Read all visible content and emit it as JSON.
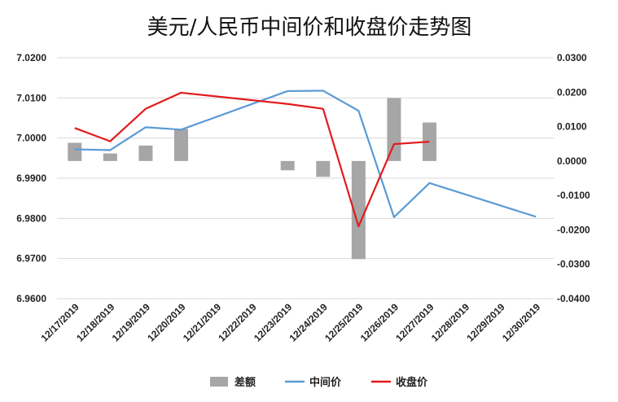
{
  "chart_data": {
    "type": "bar",
    "title": "美元/人民币中间价和收盘价走势图",
    "categories": [
      "12/17/2019",
      "12/18/2019",
      "12/19/2019",
      "12/20/2019",
      "12/21/2019",
      "12/22/2019",
      "12/23/2019",
      "12/24/2019",
      "12/25/2019",
      "12/26/2019",
      "12/27/2019",
      "12/28/2019",
      "12/29/2019",
      "12/30/2019"
    ],
    "left_axis": {
      "ylim": [
        6.96,
        7.02
      ],
      "ticks": [
        "6.9600",
        "6.9700",
        "6.9800",
        "6.9900",
        "7.0000",
        "7.0100",
        "7.0200"
      ],
      "tick_values": [
        6.96,
        6.97,
        6.98,
        6.99,
        7.0,
        7.01,
        7.02
      ]
    },
    "right_axis": {
      "ylim": [
        -0.04,
        0.03
      ],
      "ticks": [
        "-0.0400",
        "-0.0300",
        "-0.0200",
        "-0.0100",
        "0.0000",
        "0.0100",
        "0.0200",
        "0.0300"
      ],
      "tick_values": [
        -0.04,
        -0.03,
        -0.02,
        -0.01,
        0.0,
        0.01,
        0.02,
        0.03
      ]
    },
    "grid": true,
    "legend_position": "bottom",
    "series": [
      {
        "name": "差额",
        "type": "bar",
        "axis": "right",
        "color": "#a6a6a6",
        "values": [
          0.0053,
          0.0022,
          0.0045,
          0.0093,
          null,
          null,
          -0.0027,
          -0.0046,
          -0.0285,
          0.0183,
          0.0112,
          null,
          null,
          null
        ]
      },
      {
        "name": "中间价",
        "type": "line",
        "axis": "left",
        "color": "#5b9bd5",
        "values": [
          6.9972,
          6.997,
          7.0027,
          7.0021,
          null,
          null,
          7.0117,
          7.0118,
          7.0068,
          6.9803,
          6.9888,
          null,
          null,
          6.9804
        ]
      },
      {
        "name": "收盘价",
        "type": "line",
        "axis": "left",
        "color": "#e31a1c",
        "values": [
          7.0025,
          6.9992,
          7.0073,
          7.0113,
          null,
          null,
          7.0085,
          7.0073,
          6.978,
          6.9985,
          6.9991,
          null,
          null,
          null
        ]
      }
    ]
  }
}
